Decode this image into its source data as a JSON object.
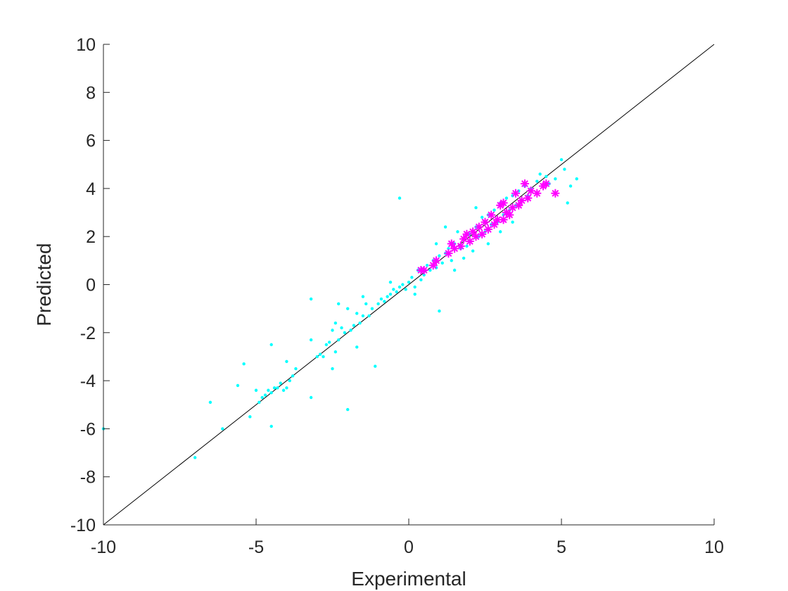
{
  "chart_data": {
    "type": "scatter",
    "title": "",
    "xlabel": "Experimental",
    "ylabel": "Predicted",
    "xlim": [
      -10,
      10
    ],
    "ylim": [
      -10,
      10
    ],
    "xticks": [
      -10,
      -5,
      0,
      5,
      10
    ],
    "xtick_labels": [
      "-10",
      "-5",
      "0",
      "5",
      "10"
    ],
    "yticks": [
      -10,
      -8,
      -6,
      -4,
      -2,
      0,
      2,
      4,
      6,
      8,
      10
    ],
    "ytick_labels": [
      "-10",
      "-8",
      "-6",
      "-4",
      "-2",
      "0",
      "2",
      "4",
      "6",
      "8",
      "10"
    ],
    "grid": false,
    "legend": "none",
    "reference_line": {
      "x": [
        -10,
        10
      ],
      "y": [
        -10,
        10
      ],
      "color": "#000000"
    },
    "series": [
      {
        "marker": "dot",
        "color": "#00FFFF",
        "points": [
          [
            -10,
            -6.0
          ],
          [
            -7.0,
            -7.2
          ],
          [
            -6.5,
            -4.9
          ],
          [
            -6.1,
            -6.0
          ],
          [
            -5.6,
            -4.2
          ],
          [
            -5.4,
            -3.3
          ],
          [
            -5.2,
            -5.5
          ],
          [
            -5.0,
            -4.4
          ],
          [
            -4.9,
            -4.9
          ],
          [
            -4.8,
            -4.7
          ],
          [
            -4.7,
            -4.6
          ],
          [
            -4.6,
            -4.4
          ],
          [
            -4.5,
            -4.5
          ],
          [
            -4.4,
            -4.3
          ],
          [
            -4.3,
            -4.3
          ],
          [
            -4.2,
            -4.1
          ],
          [
            -4.1,
            -4.4
          ],
          [
            -4.0,
            -4.3
          ],
          [
            -3.9,
            -4.0
          ],
          [
            -4.5,
            -5.9
          ],
          [
            -4.5,
            -2.5
          ],
          [
            -4.0,
            -3.2
          ],
          [
            -3.8,
            -3.8
          ],
          [
            -3.7,
            -3.5
          ],
          [
            -3.2,
            -2.3
          ],
          [
            -3.2,
            -0.6
          ],
          [
            -3.2,
            -4.7
          ],
          [
            -3.0,
            -3.0
          ],
          [
            -2.9,
            -2.9
          ],
          [
            -2.8,
            -3.0
          ],
          [
            -2.7,
            -2.5
          ],
          [
            -2.6,
            -2.4
          ],
          [
            -2.5,
            -1.9
          ],
          [
            -2.5,
            -3.5
          ],
          [
            -2.4,
            -1.6
          ],
          [
            -2.3,
            -0.8
          ],
          [
            -2.3,
            -2.3
          ],
          [
            -2.2,
            -1.8
          ],
          [
            -2.1,
            -2.0
          ],
          [
            -2.0,
            -1.0
          ],
          [
            -2.0,
            -5.2
          ],
          [
            -1.9,
            -1.9
          ],
          [
            -1.8,
            -1.7
          ],
          [
            -1.7,
            -2.6
          ],
          [
            -1.7,
            -1.2
          ],
          [
            -1.6,
            -1.6
          ],
          [
            -1.5,
            -1.3
          ],
          [
            -1.4,
            -0.8
          ],
          [
            -1.3,
            -1.3
          ],
          [
            -1.2,
            -1.0
          ],
          [
            -1.1,
            -3.4
          ],
          [
            -1.0,
            -0.8
          ],
          [
            -0.9,
            -0.6
          ],
          [
            -0.8,
            -0.7
          ],
          [
            -0.7,
            -0.5
          ],
          [
            -0.6,
            -0.4
          ],
          [
            -0.5,
            -0.2
          ],
          [
            -0.4,
            -0.3
          ],
          [
            -0.3,
            -0.1
          ],
          [
            -0.3,
            3.6
          ],
          [
            -0.2,
            0.0
          ],
          [
            -0.1,
            -0.2
          ],
          [
            0.0,
            0.1
          ],
          [
            0.1,
            0.3
          ],
          [
            0.2,
            -0.4
          ],
          [
            0.3,
            0.6
          ],
          [
            0.4,
            0.2
          ],
          [
            0.5,
            0.4
          ],
          [
            0.6,
            0.8
          ],
          [
            0.7,
            0.6
          ],
          [
            0.8,
            1.0
          ],
          [
            0.9,
            0.7
          ],
          [
            1.0,
            -1.1
          ],
          [
            1.0,
            1.2
          ],
          [
            1.1,
            0.9
          ],
          [
            1.2,
            1.3
          ],
          [
            1.3,
            1.5
          ],
          [
            1.4,
            1.0
          ],
          [
            1.5,
            1.7
          ],
          [
            1.6,
            2.2
          ],
          [
            1.7,
            1.5
          ],
          [
            1.8,
            1.9
          ],
          [
            1.9,
            1.6
          ],
          [
            2.0,
            2.1
          ],
          [
            2.1,
            1.4
          ],
          [
            2.2,
            2.4
          ],
          [
            2.3,
            2.0
          ],
          [
            2.4,
            2.8
          ],
          [
            2.5,
            2.2
          ],
          [
            2.6,
            2.9
          ],
          [
            2.7,
            2.5
          ],
          [
            2.8,
            3.1
          ],
          [
            2.9,
            2.6
          ],
          [
            3.0,
            3.4
          ],
          [
            3.1,
            2.9
          ],
          [
            3.2,
            3.6
          ],
          [
            3.3,
            3.1
          ],
          [
            3.4,
            3.7
          ],
          [
            3.5,
            3.3
          ],
          [
            3.6,
            3.9
          ],
          [
            3.7,
            3.5
          ],
          [
            3.8,
            4.1
          ],
          [
            3.9,
            3.7
          ],
          [
            4.0,
            4.0
          ],
          [
            4.2,
            4.3
          ],
          [
            4.3,
            4.6
          ],
          [
            4.5,
            4.5
          ],
          [
            4.6,
            4.2
          ],
          [
            4.8,
            4.4
          ],
          [
            5.0,
            5.2
          ],
          [
            5.1,
            4.8
          ],
          [
            5.3,
            4.1
          ],
          [
            5.5,
            4.4
          ],
          [
            5.2,
            3.4
          ],
          [
            1.2,
            2.4
          ],
          [
            1.8,
            1.1
          ],
          [
            2.2,
            3.2
          ],
          [
            2.6,
            1.7
          ],
          [
            3.0,
            2.2
          ],
          [
            3.4,
            2.6
          ],
          [
            0.9,
            1.7
          ],
          [
            1.5,
            0.6
          ],
          [
            0.2,
            -0.1
          ],
          [
            -0.6,
            0.1
          ],
          [
            -1.5,
            -0.5
          ],
          [
            -2.4,
            -2.8
          ]
        ]
      },
      {
        "marker": "star",
        "color": "#FF00FF",
        "points": [
          [
            0.4,
            0.6
          ],
          [
            0.5,
            0.6
          ],
          [
            0.8,
            0.8
          ],
          [
            0.9,
            1.0
          ],
          [
            1.3,
            1.3
          ],
          [
            1.4,
            1.7
          ],
          [
            1.5,
            1.5
          ],
          [
            1.7,
            1.6
          ],
          [
            1.8,
            1.9
          ],
          [
            1.9,
            2.1
          ],
          [
            2.0,
            1.8
          ],
          [
            2.1,
            2.2
          ],
          [
            2.2,
            2.0
          ],
          [
            2.3,
            2.4
          ],
          [
            2.4,
            2.1
          ],
          [
            2.5,
            2.6
          ],
          [
            2.6,
            2.3
          ],
          [
            2.7,
            2.9
          ],
          [
            2.8,
            2.5
          ],
          [
            2.9,
            2.7
          ],
          [
            3.0,
            3.3
          ],
          [
            3.1,
            2.7
          ],
          [
            3.2,
            3.0
          ],
          [
            3.3,
            2.9
          ],
          [
            3.4,
            3.2
          ],
          [
            3.5,
            3.8
          ],
          [
            3.6,
            3.3
          ],
          [
            3.7,
            3.5
          ],
          [
            3.8,
            4.2
          ],
          [
            3.9,
            3.6
          ],
          [
            4.0,
            3.9
          ],
          [
            4.2,
            3.8
          ],
          [
            4.4,
            4.1
          ],
          [
            4.5,
            4.2
          ],
          [
            4.8,
            3.8
          ],
          [
            3.1,
            3.4
          ]
        ]
      }
    ]
  }
}
